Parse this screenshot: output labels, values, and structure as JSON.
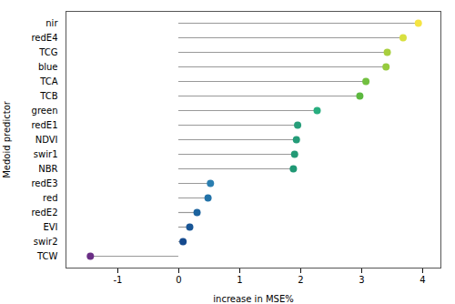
{
  "chart_data": {
    "type": "lollipop",
    "orientation": "horizontal",
    "categories": [
      "nir",
      "redE4",
      "TCG",
      "blue",
      "TCA",
      "TCB",
      "green",
      "redE1",
      "NDVI",
      "swir1",
      "NBR",
      "redE3",
      "red",
      "redE2",
      "EVI",
      "swir2",
      "TCW"
    ],
    "values": [
      3.93,
      3.68,
      3.42,
      3.4,
      3.07,
      2.97,
      2.27,
      1.95,
      1.93,
      1.9,
      1.88,
      0.52,
      0.48,
      0.3,
      0.18,
      0.07,
      -1.45
    ],
    "colors": [
      "#f5e442",
      "#d8e040",
      "#a8cf3e",
      "#96cb3e",
      "#72c040",
      "#5cb83f",
      "#28ae7f",
      "#279e7a",
      "#249c78",
      "#239a76",
      "#209874",
      "#2a7eb0",
      "#2272a8",
      "#1c639e",
      "#195696",
      "#154a8e",
      "#6a2e85"
    ],
    "color": "#999999",
    "xlabel": "increase in MSE%",
    "ylabel": "Medoid predictor",
    "xlim": [
      -1.85,
      4.3
    ],
    "xticks": [
      -1,
      0,
      1,
      2,
      3,
      4
    ],
    "grid": false
  }
}
